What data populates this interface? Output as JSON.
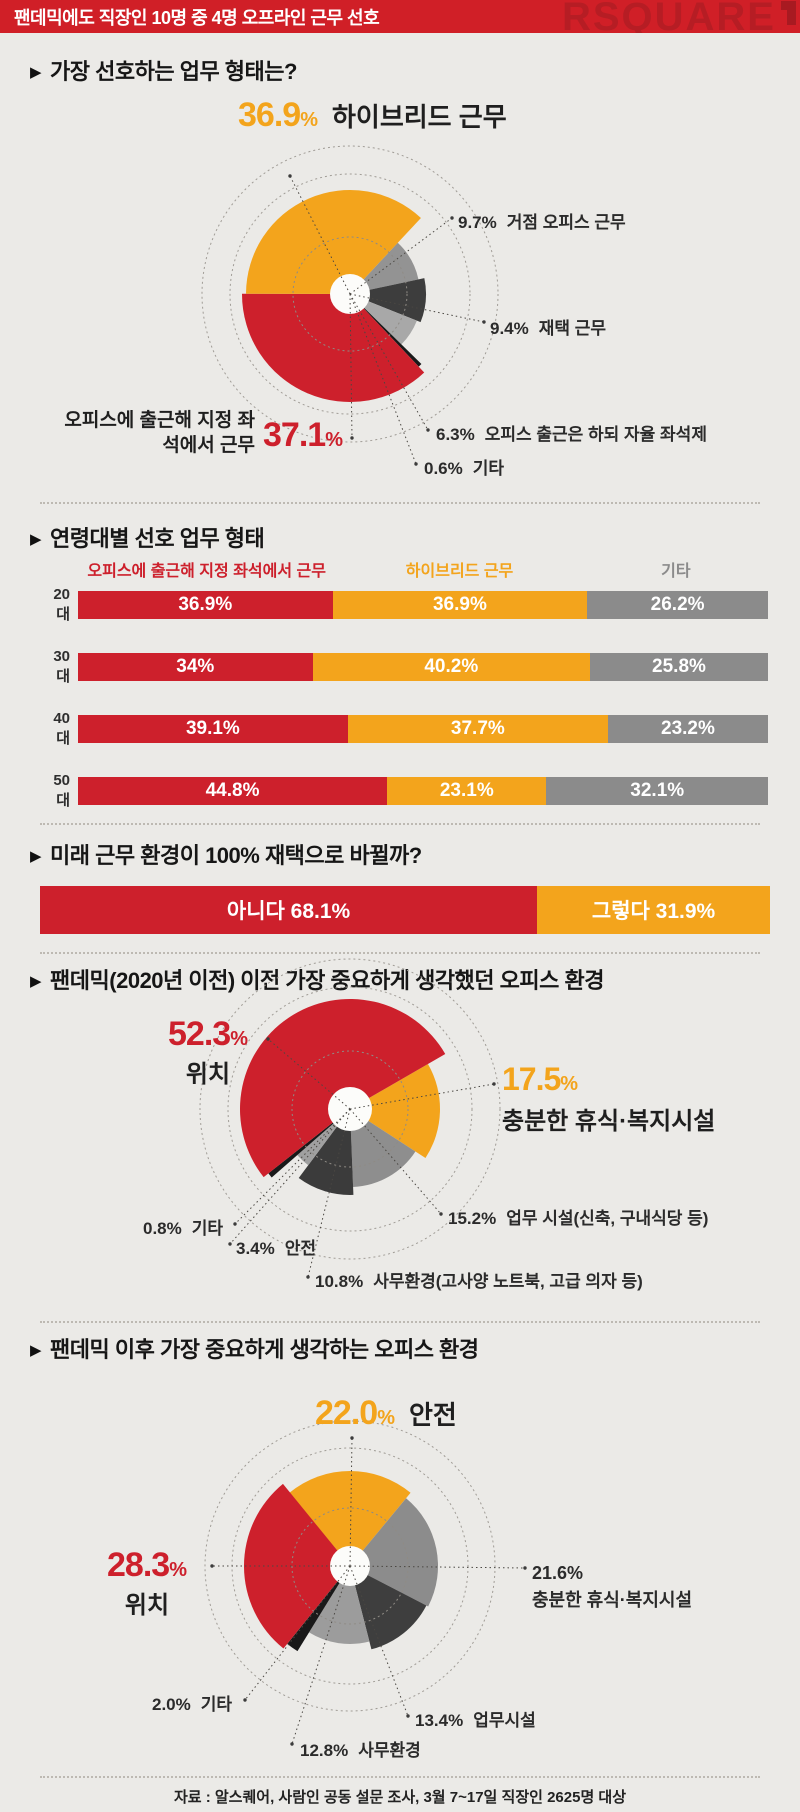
{
  "ui": {
    "percent": "%",
    "marker": "▶"
  },
  "header": {
    "title": "팬데믹에도 직장인 10명 중 4명 오프라인 근무 선호",
    "logo_text": "RSQUARE"
  },
  "colors": {
    "red": "#cd202c",
    "orange": "#f3a41c",
    "gray": "#8b8b8b",
    "header_red": "#d01f27",
    "logo_red": "#b61d24",
    "background": "#ebeae7"
  },
  "sections": {
    "s1": {
      "title": "가장 선호하는 업무 형태는?"
    },
    "s2": {
      "title": "연령대별 선호 업무 형태"
    },
    "s3": {
      "title": "미래 근무 환경이 100% 재택으로 바뀔까?"
    },
    "s4": {
      "title": "팬데믹(2020년 이전) 이전 가장 중요하게 생각했던 오피스 환경"
    },
    "s5": {
      "title": "팬데믹 이후 가장 중요하게 생각하는 오피스 환경"
    }
  },
  "chart_data": [
    {
      "id": "preferred-work-type",
      "type": "pie",
      "title": "가장 선호하는 업무 형태는?",
      "unit": "%",
      "start_angle_deg": 43,
      "hole_radius": 20,
      "guide_radii": [
        57,
        120,
        148
      ],
      "slices": [
        {
          "label": "거점 오피스 근무",
          "value": 9.7,
          "pct_text": "9.7%",
          "color": "#939393",
          "radius": 70
        },
        {
          "label": "재택 근무",
          "value": 9.4,
          "pct_text": "9.4%",
          "color": "#3d3d3d",
          "radius": 76
        },
        {
          "label": "오피스 출근은 하되 자율 좌석제",
          "value": 6.3,
          "pct_text": "6.3%",
          "color": "#a8a8a8",
          "radius": 72
        },
        {
          "label": "기타",
          "value": 0.6,
          "pct_text": "0.6%",
          "color": "#191919",
          "radius": 100
        },
        {
          "label": "오피스에 출근해 지정 좌석에서 근무",
          "value": 37.1,
          "pct_text": "37.1",
          "color": "#cd202c",
          "radius": 108
        },
        {
          "label": "하이브리드 근무",
          "value": 36.9,
          "pct_text": "36.9",
          "color": "#f3a41c",
          "radius": 104
        }
      ]
    },
    {
      "id": "preference-by-age",
      "type": "bar",
      "title": "연령대별 선호 업무 형태",
      "orientation": "horizontal",
      "stacked": true,
      "unit": "%",
      "categories": [
        "20대",
        "30대",
        "40대",
        "50대"
      ],
      "series": [
        {
          "name": "오피스에 출근해 지정 좌석에서 근무",
          "color": "#cd202c",
          "values": [
            36.9,
            34,
            39.1,
            44.8
          ],
          "labels": [
            "36.9%",
            "34%",
            "39.1%",
            "44.8%"
          ]
        },
        {
          "name": "하이브리드 근무",
          "color": "#f3a41c",
          "values": [
            36.9,
            40.2,
            37.7,
            23.1
          ],
          "labels": [
            "36.9%",
            "40.2%",
            "37.7%",
            "23.1%"
          ]
        },
        {
          "name": "기타",
          "color": "#8b8b8b",
          "values": [
            26.2,
            25.8,
            23.2,
            32.1
          ],
          "labels": [
            "26.2%",
            "25.8%",
            "23.2%",
            "32.1%"
          ]
        }
      ]
    },
    {
      "id": "remote-future",
      "type": "bar",
      "title": "미래 근무 환경이 100% 재택으로 바뀔까?",
      "orientation": "horizontal",
      "stacked": true,
      "unit": "%",
      "segments": [
        {
          "label": "아니다 68.1%",
          "value": 68.1,
          "color": "#cd202c"
        },
        {
          "label": "그렇다 31.9%",
          "value": 31.9,
          "color": "#f3a41c"
        }
      ]
    },
    {
      "id": "office-env-before-pandemic",
      "type": "pie",
      "title": "팬데믹(2020년 이전) 이전 가장 중요하게 생각했던 오피스 환경",
      "unit": "%",
      "start_angle_deg": 60,
      "hole_radius": 22,
      "guide_radii": [
        58,
        122,
        150
      ],
      "slices": [
        {
          "label": "충분한 휴식·복지시설",
          "value": 17.5,
          "pct_text": "17.5",
          "color": "#f3a41c",
          "radius": 90
        },
        {
          "label": "업무 시설(신축, 구내식당 등)",
          "value": 15.2,
          "pct_text": "15.2%",
          "color": "#8e8e8e",
          "radius": 78
        },
        {
          "label": "사무환경(고사양 노트북, 고급 의자 등)",
          "value": 10.8,
          "pct_text": "10.8%",
          "color": "#3b3b3b",
          "radius": 86
        },
        {
          "label": "안전",
          "value": 3.4,
          "pct_text": "3.4%",
          "color": "#a0a0a0",
          "radius": 70
        },
        {
          "label": "기타",
          "value": 0.8,
          "pct_text": "0.8%",
          "color": "#191919",
          "radius": 104
        },
        {
          "label": "위치",
          "value": 52.3,
          "pct_text": "52.3",
          "color": "#cd202c",
          "radius": 110
        }
      ]
    },
    {
      "id": "office-env-after-pandemic",
      "type": "pie",
      "title": "팬데믹 이후 가장 중요하게 생각하는 오피스 환경",
      "unit": "%",
      "start_angle_deg": -39.6,
      "hole_radius": 20,
      "guide_radii": [
        58,
        118,
        145
      ],
      "slices": [
        {
          "label": "안전",
          "value": 22.0,
          "pct_text": "22.0",
          "color": "#f3a41c",
          "radius": 95
        },
        {
          "label": "충분한 휴식·복지시설",
          "value": 21.6,
          "pct_text": "21.6%",
          "color": "#8c8c8c",
          "radius": 88
        },
        {
          "label": "업무시설",
          "value": 13.4,
          "pct_text": "13.4%",
          "color": "#3e3e3e",
          "radius": 86
        },
        {
          "label": "사무환경",
          "value": 12.8,
          "pct_text": "12.8%",
          "color": "#9c9c9c",
          "radius": 78
        },
        {
          "label": "기타",
          "value": 2.0,
          "pct_text": "2.0%",
          "color": "#191919",
          "radius": 100
        },
        {
          "label": "위치",
          "value": 28.3,
          "pct_text": "28.3",
          "color": "#cd202c",
          "radius": 106
        }
      ]
    }
  ],
  "footer": {
    "source": "자료 : 알스퀘어, 사람인 공동 설문 조사, 3월 7~17일 직장인 2625명 대상"
  }
}
